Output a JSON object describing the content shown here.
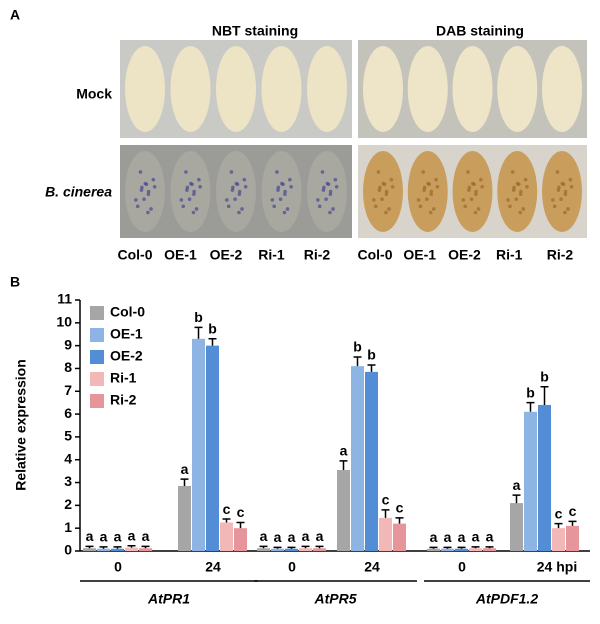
{
  "panel_a": {
    "label": "A",
    "stains": [
      "NBT staining",
      "DAB staining"
    ],
    "rows": [
      "Mock",
      "B. cinerea"
    ],
    "columns": [
      "Col-0",
      "OE-1",
      "OE-2",
      "Ri-1",
      "Ri-2"
    ]
  },
  "chart_data": {
    "type": "bar",
    "panel_label": "B",
    "y_label": "Relative expression",
    "categories": [
      "0",
      "24",
      "0",
      "24",
      "0",
      "24 hpi"
    ],
    "groups": [
      "AtPR1",
      "AtPR5",
      "AtPDF1.2"
    ],
    "series": [
      {
        "name": "Col-0",
        "color": "#a6a6a6",
        "values": [
          0.12,
          2.85,
          0.12,
          3.55,
          0.1,
          2.1
        ],
        "errors": [
          0.08,
          0.3,
          0.08,
          0.4,
          0.06,
          0.35
        ],
        "letters": [
          "a",
          "a",
          "a",
          "a",
          "a",
          "a"
        ]
      },
      {
        "name": "OE-1",
        "color": "#8db4e2",
        "values": [
          0.1,
          9.3,
          0.1,
          8.1,
          0.1,
          6.1
        ],
        "errors": [
          0.08,
          0.5,
          0.06,
          0.4,
          0.06,
          0.4
        ],
        "letters": [
          "a",
          "b",
          "a",
          "b",
          "a",
          "b"
        ]
      },
      {
        "name": "OE-2",
        "color": "#538dd5",
        "values": [
          0.1,
          9.0,
          0.1,
          7.85,
          0.1,
          6.4
        ],
        "errors": [
          0.08,
          0.3,
          0.06,
          0.3,
          0.06,
          0.8
        ],
        "letters": [
          "a",
          "b",
          "a",
          "b",
          "a",
          "b"
        ]
      },
      {
        "name": "Ri-1",
        "color": "#f2b8b8",
        "values": [
          0.15,
          1.25,
          0.12,
          1.45,
          0.12,
          1.0
        ],
        "errors": [
          0.08,
          0.15,
          0.08,
          0.35,
          0.06,
          0.2
        ],
        "letters": [
          "a",
          "c",
          "a",
          "c",
          "a",
          "c"
        ]
      },
      {
        "name": "Ri-2",
        "color": "#e6969a",
        "values": [
          0.12,
          1.0,
          0.12,
          1.2,
          0.12,
          1.1
        ],
        "errors": [
          0.08,
          0.25,
          0.08,
          0.25,
          0.06,
          0.2
        ],
        "letters": [
          "a",
          "c",
          "a",
          "c",
          "a",
          "c"
        ]
      }
    ],
    "ylim": [
      0,
      11
    ],
    "yticks": [
      0,
      1,
      2,
      3,
      4,
      5,
      6,
      7,
      8,
      9,
      10,
      11
    ],
    "legend": "upper-left"
  }
}
